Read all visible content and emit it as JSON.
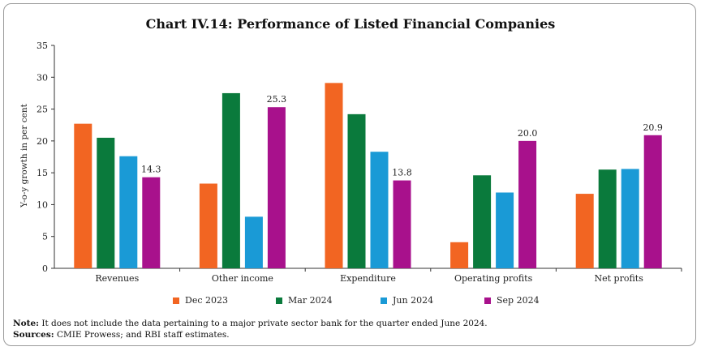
{
  "chart_data": {
    "type": "bar",
    "title": "Chart IV.14: Performance of Listed Financial Companies",
    "ylabel": "Y-o-y growth in per cent",
    "xlabel": "",
    "ylim": [
      0,
      35
    ],
    "yticks": [
      0,
      5,
      10,
      15,
      20,
      25,
      30,
      35
    ],
    "categories": [
      "Revenues",
      "Other income",
      "Expenditure",
      "Operating profits",
      "Net profits"
    ],
    "series": [
      {
        "name": "Dec 2023",
        "color": "#f26522",
        "values": [
          22.7,
          13.3,
          29.1,
          4.1,
          11.7
        ]
      },
      {
        "name": "Mar 2024",
        "color": "#0a7a3c",
        "values": [
          20.5,
          27.5,
          24.2,
          14.6,
          15.5
        ]
      },
      {
        "name": "Jun 2024",
        "color": "#1a9ad6",
        "values": [
          17.6,
          8.1,
          18.3,
          11.9,
          15.6
        ]
      },
      {
        "name": "Sep 2024",
        "color": "#a8118c",
        "values": [
          14.3,
          25.3,
          13.8,
          20.0,
          20.9
        ]
      }
    ],
    "data_labels": [
      {
        "series": 3,
        "category": 0,
        "text": "14.3"
      },
      {
        "series": 3,
        "category": 1,
        "text": "25.3"
      },
      {
        "series": 3,
        "category": 2,
        "text": "13.8"
      },
      {
        "series": 3,
        "category": 3,
        "text": "20.0"
      },
      {
        "series": 3,
        "category": 4,
        "text": "20.9"
      }
    ],
    "legend_position": "bottom",
    "grid": false
  },
  "footnotes": {
    "note_label": "Note:",
    "note_text": " It does not include the data pertaining to a major private sector bank for the quarter ended June 2024.",
    "sources_label": "Sources:",
    "sources_text": " CMIE Prowess; and RBI staff estimates."
  }
}
